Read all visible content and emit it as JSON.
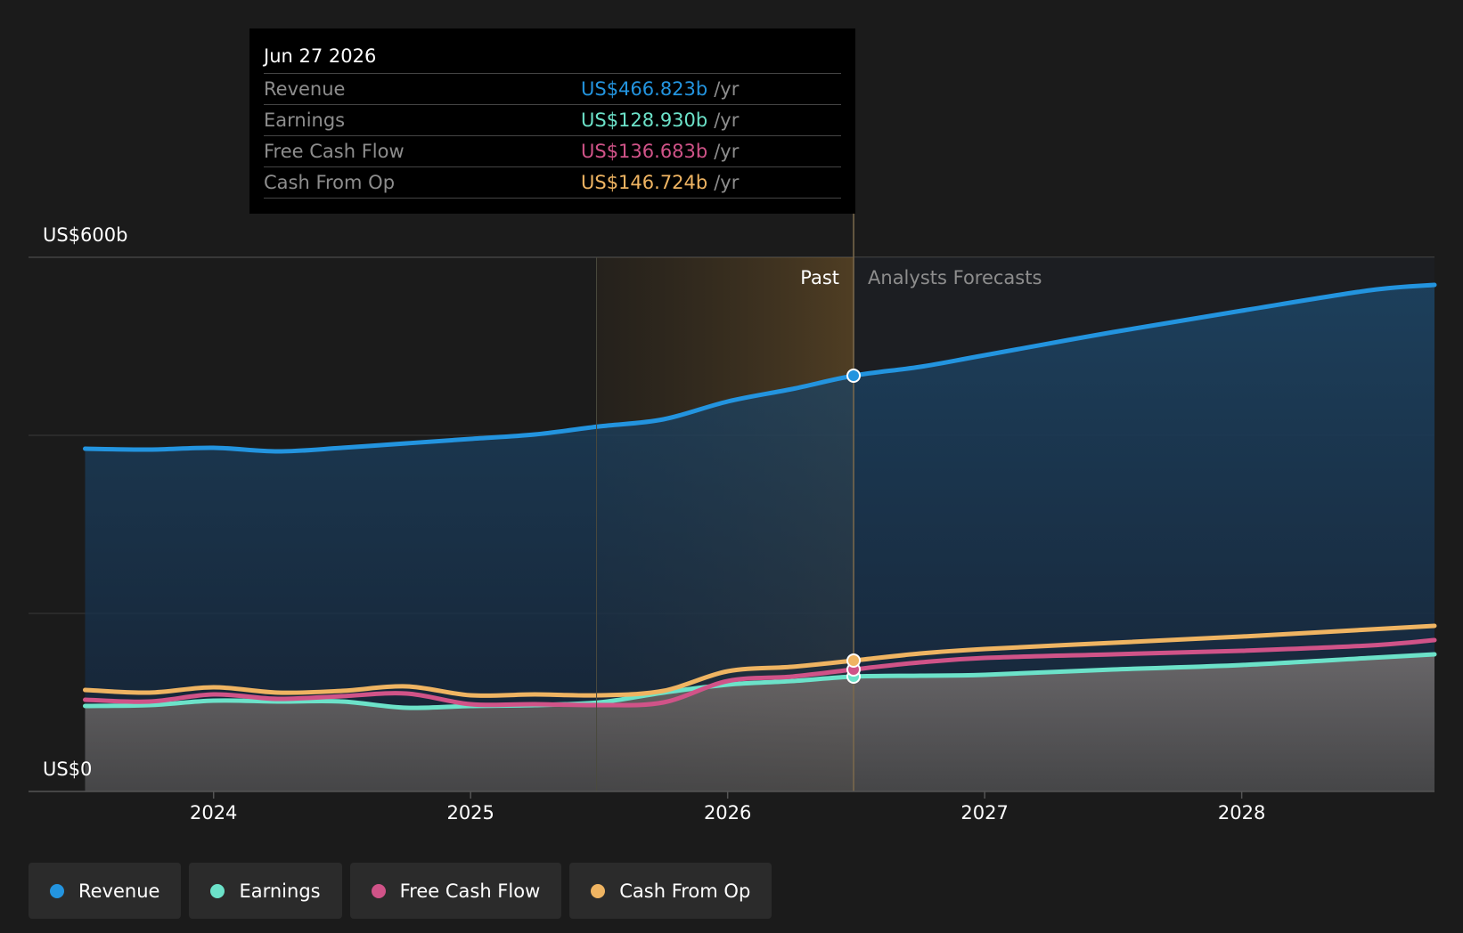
{
  "tooltip": {
    "date": "Jun 27 2026",
    "rows": [
      {
        "label": "Revenue",
        "value": "US$466.823b",
        "unit": "/yr",
        "color": "#2394df"
      },
      {
        "label": "Earnings",
        "value": "US$128.930b",
        "unit": "/yr",
        "color": "#6ce2c9"
      },
      {
        "label": "Free Cash Flow",
        "value": "US$136.683b",
        "unit": "/yr",
        "color": "#d05388"
      },
      {
        "label": "Cash From Op",
        "value": "US$146.724b",
        "unit": "/yr",
        "color": "#efb462"
      }
    ]
  },
  "labels": {
    "past": "Past",
    "forecast": "Analysts Forecasts"
  },
  "legend": [
    {
      "label": "Revenue",
      "color": "#2394df"
    },
    {
      "label": "Earnings",
      "color": "#6ce2c9"
    },
    {
      "label": "Free Cash Flow",
      "color": "#d05388"
    },
    {
      "label": "Cash From Op",
      "color": "#efb462"
    }
  ],
  "chart_data": {
    "type": "line",
    "y_axis": {
      "min": 0,
      "max": 600,
      "unit": "US$b",
      "tick_labels": [
        "US$0",
        "US$600b"
      ],
      "gridlines": [
        0,
        200,
        400,
        600
      ]
    },
    "x_axis": {
      "tick_labels": [
        "2024",
        "2025",
        "2026",
        "2027",
        "2028"
      ],
      "ticks": [
        2024,
        2025,
        2026,
        2027,
        2028
      ],
      "min": 2023.28,
      "max": 2028.75
    },
    "past_end": 2026.49,
    "highlight_start": 2025.49,
    "series": [
      {
        "name": "Revenue",
        "color": "#2394df",
        "x": [
          2023.5,
          2023.75,
          2024,
          2024.25,
          2024.5,
          2024.75,
          2025,
          2025.25,
          2025.5,
          2025.75,
          2026,
          2026.25,
          2026.49,
          2026.75,
          2027,
          2027.5,
          2028,
          2028.5,
          2028.75
        ],
        "y": [
          385,
          384,
          386,
          382,
          386,
          391,
          396,
          401,
          410,
          418,
          438,
          452,
          467,
          477,
          490,
          516,
          540,
          563,
          569
        ]
      },
      {
        "name": "Earnings",
        "color": "#6ce2c9",
        "x": [
          2023.5,
          2023.75,
          2024,
          2024.25,
          2024.5,
          2024.75,
          2025,
          2025.25,
          2025.5,
          2025.75,
          2026,
          2026.25,
          2026.49,
          2026.75,
          2027,
          2027.5,
          2028,
          2028.5,
          2028.75
        ],
        "y": [
          96,
          97,
          102,
          101,
          101,
          94,
          96,
          97,
          100,
          111,
          120,
          124,
          129,
          130,
          131,
          137,
          142,
          150,
          154
        ]
      },
      {
        "name": "Free Cash Flow",
        "color": "#d05388",
        "x": [
          2023.5,
          2023.75,
          2024,
          2024.25,
          2024.5,
          2024.75,
          2025,
          2025.25,
          2025.5,
          2025.75,
          2026,
          2026.25,
          2026.49,
          2026.75,
          2027,
          2027.5,
          2028,
          2028.5,
          2028.75
        ],
        "y": [
          103,
          101,
          109,
          104,
          107,
          110,
          98,
          98,
          97,
          100,
          124,
          129,
          137,
          145,
          150,
          154,
          158,
          164,
          170
        ]
      },
      {
        "name": "Cash From Op",
        "color": "#efb462",
        "x": [
          2023.5,
          2023.75,
          2024,
          2024.25,
          2024.5,
          2024.75,
          2025,
          2025.25,
          2025.5,
          2025.75,
          2026,
          2026.25,
          2026.49,
          2026.75,
          2027,
          2027.5,
          2028,
          2028.5,
          2028.75
        ],
        "y": [
          114,
          111,
          117,
          111,
          113,
          118,
          108,
          109,
          108,
          113,
          135,
          140,
          147,
          155,
          160,
          167,
          174,
          182,
          186
        ]
      }
    ]
  }
}
